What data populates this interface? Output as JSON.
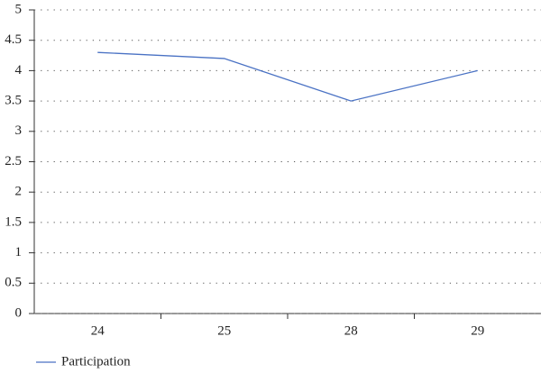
{
  "chart_data": {
    "type": "line",
    "categories": [
      "24",
      "25",
      "28",
      "29"
    ],
    "series": [
      {
        "name": "Participation",
        "color": "#4a72c4",
        "values": [
          4.3,
          4.2,
          3.5,
          4.0
        ]
      }
    ],
    "ylim": [
      0,
      5
    ],
    "yticks": [
      0,
      0.5,
      1,
      1.5,
      2,
      2.5,
      3,
      3.5,
      4,
      4.5,
      5
    ],
    "grid": true,
    "legend": "bottom-left"
  }
}
